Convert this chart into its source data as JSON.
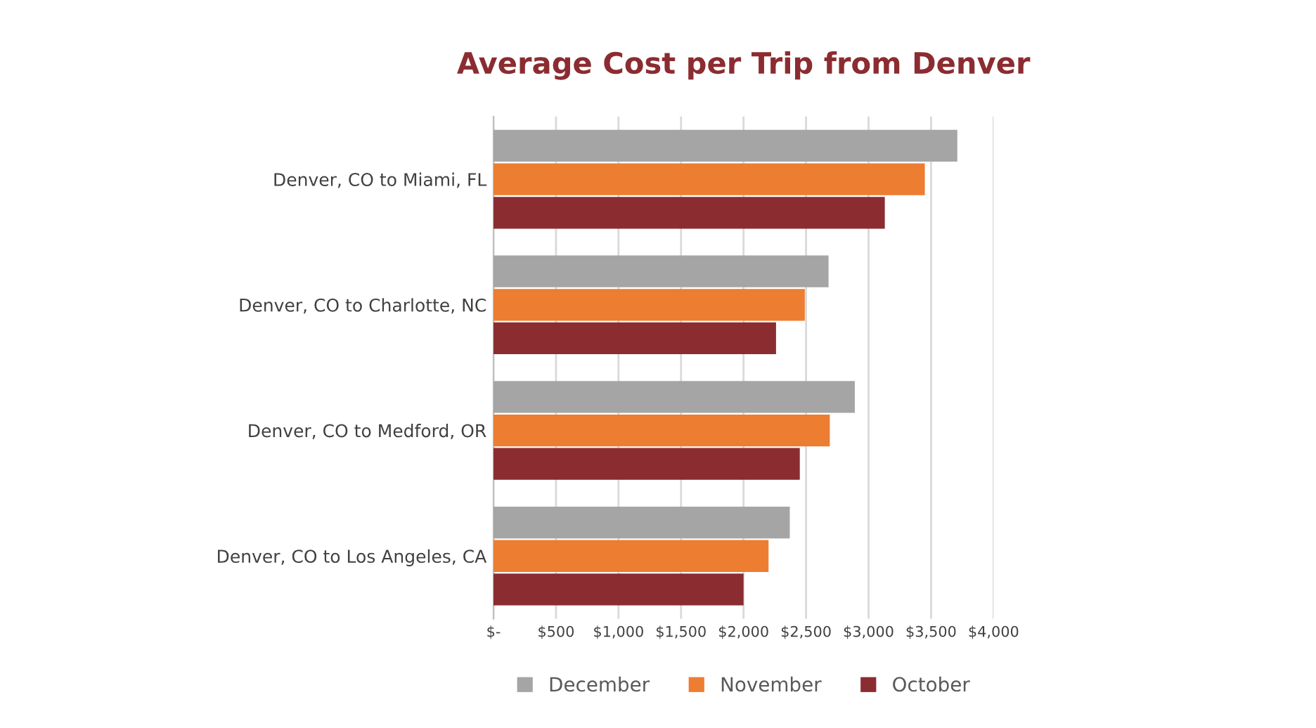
{
  "chart_data": {
    "type": "bar",
    "orientation": "horizontal",
    "title": "Average Cost per Trip from Denver",
    "categories": [
      "Denver, CO to Miami, FL",
      "Denver, CO to Charlotte, NC",
      "Denver, CO to Medford, OR",
      "Denver, CO to Los Angeles, CA"
    ],
    "series": [
      {
        "name": "December",
        "color": "#a5a5a5",
        "values": [
          3710,
          2680,
          2890,
          2370
        ]
      },
      {
        "name": "November",
        "color": "#ed7d31",
        "values": [
          3450,
          2490,
          2690,
          2200
        ]
      },
      {
        "name": "October",
        "color": "#8b2c31",
        "values": [
          3130,
          2260,
          2450,
          2000
        ]
      }
    ],
    "xlim": [
      0,
      4000
    ],
    "xticks": [
      {
        "value": 0,
        "label": "$-"
      },
      {
        "value": 500,
        "label": "$500"
      },
      {
        "value": 1000,
        "label": "$1,000"
      },
      {
        "value": 1500,
        "label": "$1,500"
      },
      {
        "value": 2000,
        "label": "$2,000"
      },
      {
        "value": 2500,
        "label": "$2,500"
      },
      {
        "value": 3000,
        "label": "$3,000"
      },
      {
        "value": 3500,
        "label": "$3,500"
      },
      {
        "value": 4000,
        "label": "$4,000"
      }
    ],
    "grid": "x",
    "legend": "bottom"
  }
}
